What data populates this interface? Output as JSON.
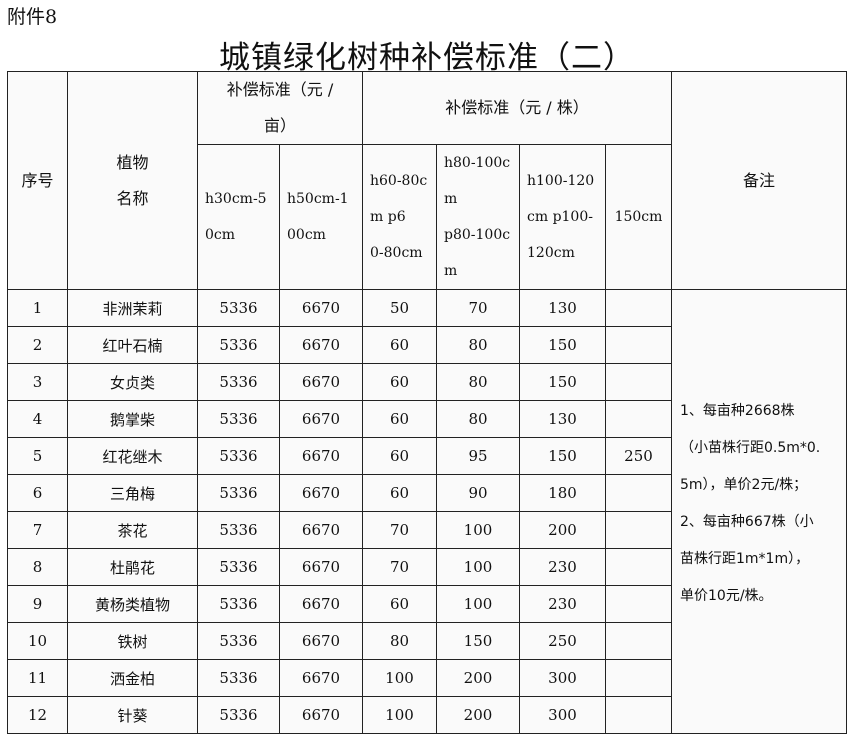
{
  "attachment": "附件8",
  "title": "城镇绿化树种补偿标准（二）",
  "header": {
    "seq": "序号",
    "plant": [
      "植物",
      "名称"
    ],
    "per_mu": [
      "补偿标准（元 /",
      "亩）"
    ],
    "per_plant": "补偿标准（元 / 株）",
    "remark": "备注",
    "sizes": [
      [
        "h30cm-5",
        "0cm"
      ],
      [
        "h50cm-1",
        "00cm"
      ],
      [
        "h60-80c",
        "m    p6",
        "0-80cm"
      ],
      [
        "h80-100c",
        "m",
        "p80-100c",
        "m"
      ],
      [
        "h100-120",
        "cm p100-",
        "120cm"
      ],
      [
        "150cm"
      ]
    ]
  },
  "rows": [
    [
      "1",
      "非洲茉莉",
      "5336",
      "6670",
      "50",
      "70",
      "130",
      ""
    ],
    [
      "2",
      "红叶石楠",
      "5336",
      "6670",
      "60",
      "80",
      "150",
      ""
    ],
    [
      "3",
      "女贞类",
      "5336",
      "6670",
      "60",
      "80",
      "150",
      ""
    ],
    [
      "4",
      "鹅掌柴",
      "5336",
      "6670",
      "60",
      "80",
      "130",
      ""
    ],
    [
      "5",
      "红花继木",
      "5336",
      "6670",
      "60",
      "95",
      "150",
      "250"
    ],
    [
      "6",
      "三角梅",
      "5336",
      "6670",
      "60",
      "90",
      "180",
      ""
    ],
    [
      "7",
      "茶花",
      "5336",
      "6670",
      "70",
      "100",
      "200",
      ""
    ],
    [
      "8",
      "杜鹃花",
      "5336",
      "6670",
      "70",
      "100",
      "230",
      ""
    ],
    [
      "9",
      "黄杨类植物",
      "5336",
      "6670",
      "60",
      "100",
      "230",
      ""
    ],
    [
      "10",
      "铁树",
      "5336",
      "6670",
      "80",
      "150",
      "250",
      ""
    ],
    [
      "11",
      "洒金柏",
      "5336",
      "6670",
      "100",
      "200",
      "300",
      ""
    ],
    [
      "12",
      "针葵",
      "5336",
      "6670",
      "100",
      "200",
      "300",
      ""
    ]
  ],
  "remarks": [
    "1、每亩种2668株",
    "（小苗株行距0.5m*0.",
    "5m），单价2元/株；",
    "2、每亩种667株（小",
    "苗株行距1m*1m），",
    "单价10元/株。"
  ]
}
